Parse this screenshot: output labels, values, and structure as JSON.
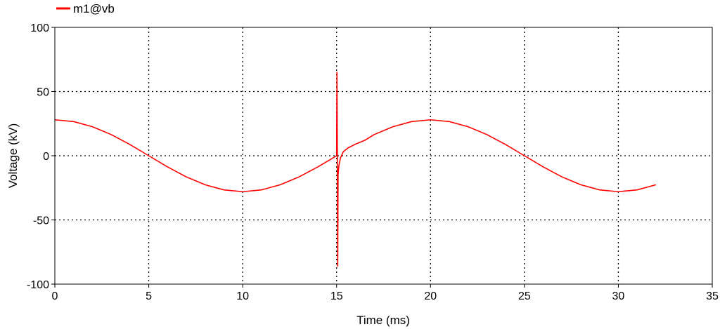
{
  "chart_data": {
    "type": "line",
    "xlabel": "Time (ms)",
    "ylabel": "Voltage (kV)",
    "xlim": [
      0,
      35
    ],
    "ylim": [
      -100,
      100
    ],
    "x_ticks": [
      0,
      5,
      10,
      15,
      20,
      25,
      30,
      35
    ],
    "y_ticks": [
      -100,
      -50,
      0,
      50,
      100
    ],
    "x_tick_labels": [
      "0",
      "5",
      "10",
      "15",
      "20",
      "25",
      "30",
      "35"
    ],
    "y_tick_labels": [
      "-100",
      "-50",
      "0",
      "50",
      "100"
    ],
    "grid": true,
    "legend_position": "top-left",
    "series": [
      {
        "name": "m1@vb",
        "color": "#ff0000",
        "x": [
          0,
          1,
          2,
          3,
          4,
          5,
          6,
          7,
          8,
          9,
          10,
          11,
          12,
          13,
          14,
          14.5,
          15,
          15.02,
          15.04,
          15.06,
          15.08,
          15.12,
          15.2,
          15.35,
          15.6,
          16,
          16.5,
          17,
          18,
          19,
          20,
          21,
          22,
          23,
          24,
          25,
          26,
          27,
          28,
          29,
          30,
          31,
          32
        ],
        "y": [
          28,
          26.6,
          22.6,
          16.5,
          8.7,
          0,
          -8.7,
          -16.5,
          -22.6,
          -26.6,
          -28,
          -26.6,
          -22.6,
          -16.5,
          -8.7,
          -4.4,
          0,
          65,
          0,
          -86,
          -15,
          -8,
          -2,
          3,
          6,
          9,
          12,
          16.5,
          22.6,
          26.6,
          28,
          26.6,
          22.6,
          16.5,
          8.7,
          0,
          -8.7,
          -16.5,
          -22.6,
          -26.6,
          -28,
          -26.6,
          -22.6
        ]
      }
    ]
  }
}
